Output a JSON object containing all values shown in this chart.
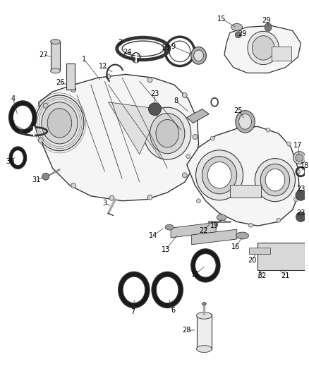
{
  "bg_color": "#ffffff",
  "line_color": "#333333",
  "label_color": "#000000",
  "figsize": [
    4.38,
    5.33
  ],
  "dpi": 100,
  "label_fs": 7.0,
  "lw_main": 0.9,
  "lw_thin": 0.5
}
